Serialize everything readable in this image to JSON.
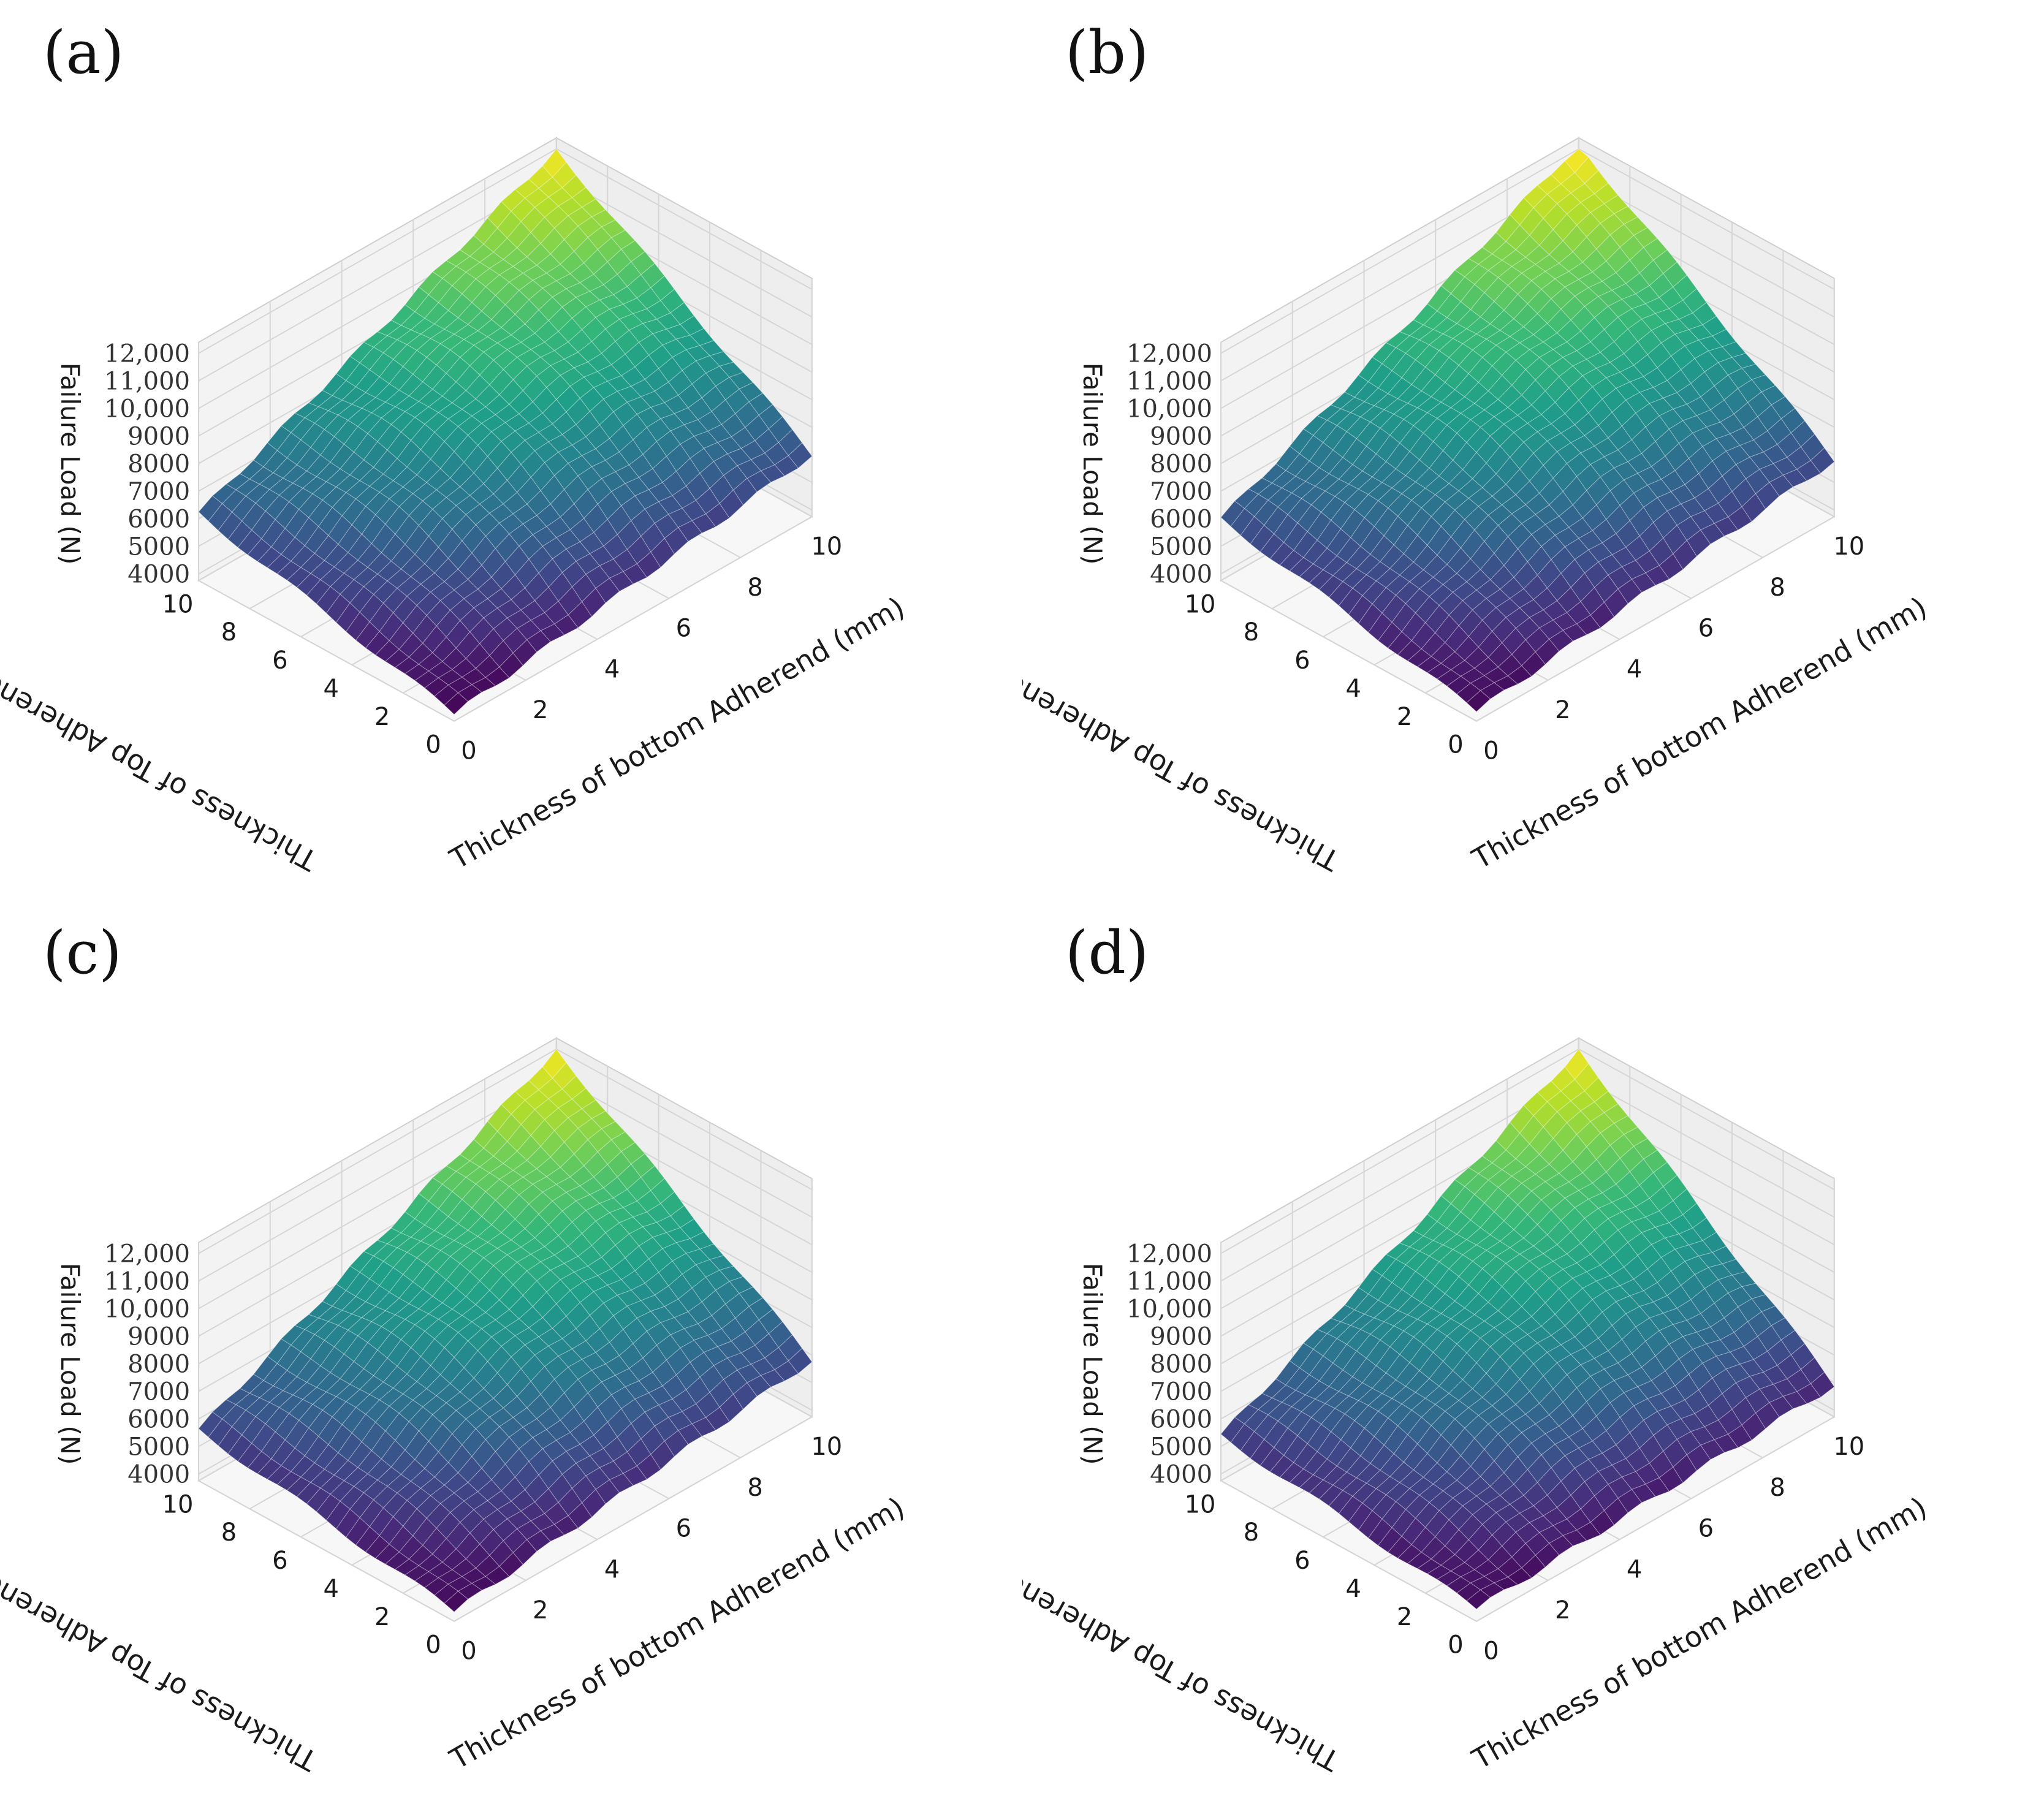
{
  "chart_data": [
    {
      "panel": "(a)",
      "type": "surface3d",
      "zlabel": "Failure Load (N)",
      "ylabel": "Thickness of Top Adherend (mm)",
      "xlabel": "Thickness of bottom Adherend (mm)",
      "z_ticks": [
        "4000",
        "5000",
        "6000",
        "7000",
        "8000",
        "9000",
        "10,000",
        "11,000",
        "12,000"
      ],
      "y_ticks": [
        "0",
        "2",
        "4",
        "6",
        "8",
        "10"
      ],
      "x_ticks": [
        "0",
        "2",
        "4",
        "6",
        "8",
        "10"
      ],
      "xlim": [
        0,
        10
      ],
      "ylim": [
        0,
        10
      ],
      "zlim": [
        4000,
        12000
      ],
      "colormap": "viridis",
      "corner_loads": {
        "x0_y0": 4000,
        "x10_y0": 6000,
        "x0_y10": 6200,
        "x10_y10": 12000
      }
    },
    {
      "panel": "(b)",
      "type": "surface3d",
      "zlabel": "Failure Load (N)",
      "ylabel": "Thickness of Top Adherend (mm)",
      "xlabel": "Thickness of bottom Adherend (mm)",
      "z_ticks": [
        "4000",
        "5000",
        "6000",
        "7000",
        "8000",
        "9000",
        "10,000",
        "11,000",
        "12,000"
      ],
      "y_ticks": [
        "0",
        "2",
        "4",
        "6",
        "8",
        "10"
      ],
      "x_ticks": [
        "0",
        "2",
        "4",
        "6",
        "8",
        "10"
      ],
      "xlim": [
        0,
        10
      ],
      "ylim": [
        0,
        10
      ],
      "zlim": [
        4000,
        12000
      ],
      "colormap": "viridis",
      "corner_loads": {
        "x0_y0": 4100,
        "x10_y0": 5800,
        "x0_y10": 6000,
        "x10_y10": 12200
      }
    },
    {
      "panel": "(c)",
      "type": "surface3d",
      "zlabel": "Failure Load (N)",
      "ylabel": "Thickness of Top Adherend (mm)",
      "xlabel": "Thickness of bottom Adherend (mm)",
      "z_ticks": [
        "4000",
        "5000",
        "6000",
        "7000",
        "8000",
        "9000",
        "10,000",
        "11,000",
        "12,000"
      ],
      "y_ticks": [
        "0",
        "2",
        "4",
        "6",
        "8",
        "10"
      ],
      "x_ticks": [
        "0",
        "2",
        "4",
        "6",
        "8",
        "10"
      ],
      "xlim": [
        0,
        10
      ],
      "ylim": [
        0,
        10
      ],
      "zlim": [
        4000,
        12000
      ],
      "colormap": "viridis",
      "corner_loads": {
        "x0_y0": 4100,
        "x10_y0": 5800,
        "x0_y10": 5600,
        "x10_y10": 12000
      }
    },
    {
      "panel": "(d)",
      "type": "surface3d",
      "zlabel": "Failure Load (N)",
      "ylabel": "Thickness of Top Adherend (mm)",
      "xlabel": "Thickness of bottom Adherend (mm)",
      "z_ticks": [
        "4000",
        "5000",
        "6000",
        "7000",
        "8000",
        "9000",
        "10,000",
        "11,000",
        "12,000"
      ],
      "y_ticks": [
        "0",
        "2",
        "4",
        "6",
        "8",
        "10"
      ],
      "x_ticks": [
        "0",
        "2",
        "4",
        "6",
        "8",
        "10"
      ],
      "xlim": [
        0,
        10
      ],
      "ylim": [
        0,
        10
      ],
      "zlim": [
        4000,
        12000
      ],
      "colormap": "viridis",
      "corner_loads": {
        "x0_y0": 4200,
        "x10_y0": 4900,
        "x0_y10": 5400,
        "x10_y10": 12000
      }
    }
  ]
}
